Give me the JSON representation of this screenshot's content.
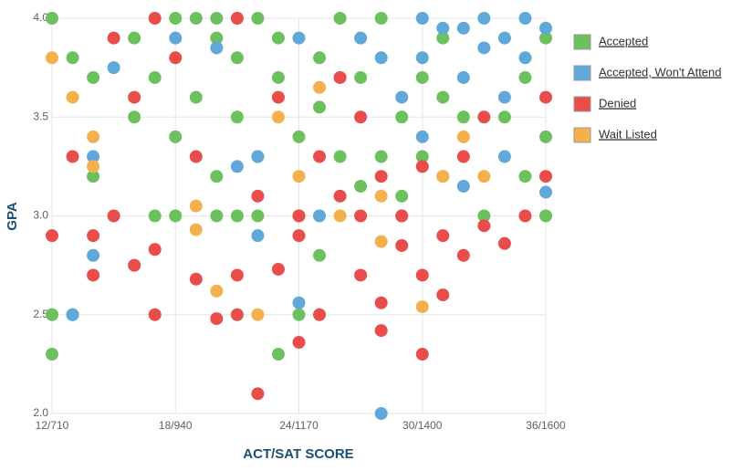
{
  "chart_data": {
    "type": "scatter",
    "x_label": "ACT/SAT SCORE",
    "y_label": "GPA",
    "xlim": [
      12,
      36
    ],
    "xticks": [
      {
        "value": 12,
        "label": "12/710"
      },
      {
        "value": 18,
        "label": "18/940"
      },
      {
        "value": 24,
        "label": "24/1170"
      },
      {
        "value": 30,
        "label": "30/1400"
      },
      {
        "value": 36,
        "label": "36/1600"
      }
    ],
    "ylim": [
      2,
      4
    ],
    "yticks": [
      {
        "value": 2,
        "label": "2.0"
      },
      2.5,
      {
        "value": 3,
        "label": "3.0"
      },
      3.5,
      {
        "value": 4,
        "label": "4.0"
      }
    ],
    "grid": true,
    "legend": "right",
    "series": [
      {
        "name": "Accepted",
        "color": "#6cc05e",
        "x": [
          12,
          12,
          12,
          13,
          13,
          14,
          14,
          16,
          16,
          17,
          17,
          18,
          18,
          18,
          19,
          19,
          20,
          20,
          20,
          21,
          21,
          22,
          22,
          22,
          23,
          23,
          23,
          24,
          24,
          24,
          25,
          25,
          26,
          26,
          27,
          27,
          28,
          28,
          29,
          29,
          30,
          30,
          31,
          32,
          33,
          34,
          35,
          35,
          36,
          36,
          36,
          21,
          25,
          20,
          31
        ],
        "values": [
          4.0,
          2.5,
          2.3,
          3.8,
          2.5,
          3.7,
          3.2,
          3.9,
          3.5,
          3.7,
          3.0,
          4.0,
          3.4,
          3.0,
          4.0,
          3.6,
          4.0,
          3.2,
          3.0,
          3.8,
          3.5,
          4.0,
          3.3,
          3.0,
          3.9,
          3.7,
          2.3,
          3.4,
          3.0,
          2.5,
          2.8,
          3.8,
          3.3,
          4.0,
          3.7,
          3.15,
          3.3,
          4.0,
          3.5,
          3.1,
          3.7,
          3.3,
          3.6,
          3.5,
          3.0,
          3.5,
          3.2,
          3.7,
          3.4,
          3.0,
          3.9,
          3.0,
          3.55,
          3.9,
          3.9
        ]
      },
      {
        "name": "Accepted, Won't Attend",
        "color": "#5fa8d9",
        "x": [
          13,
          14,
          14,
          15,
          18,
          20,
          21,
          22,
          22,
          24,
          24,
          25,
          26,
          27,
          28,
          28,
          29,
          29,
          30,
          30,
          31,
          31,
          32,
          32,
          33,
          33,
          34,
          34,
          35,
          35,
          36,
          36,
          34,
          30,
          32
        ],
        "values": [
          2.5,
          3.3,
          2.8,
          3.75,
          3.9,
          3.85,
          3.25,
          3.3,
          2.9,
          2.56,
          3.9,
          3.0,
          3.7,
          3.9,
          2.0,
          3.8,
          3.6,
          3.0,
          3.8,
          3.4,
          3.95,
          3.2,
          3.7,
          3.15,
          4.0,
          3.85,
          3.6,
          3.9,
          4.0,
          3.8,
          3.95,
          3.12,
          3.3,
          4.0,
          3.95
        ]
      },
      {
        "name": "Denied",
        "color": "#e84d4b",
        "x": [
          12,
          13,
          14,
          14,
          15,
          15,
          16,
          16,
          17,
          17,
          17,
          18,
          19,
          19,
          20,
          21,
          21,
          21,
          22,
          22,
          23,
          23,
          24,
          24,
          24,
          25,
          25,
          26,
          26,
          27,
          27,
          28,
          28,
          28,
          29,
          29,
          30,
          30,
          30,
          31,
          31,
          32,
          32,
          33,
          33,
          34,
          35,
          36,
          36,
          27
        ],
        "values": [
          2.9,
          3.3,
          2.9,
          2.7,
          3.9,
          3.0,
          3.6,
          2.75,
          4.0,
          2.83,
          2.5,
          3.8,
          2.68,
          3.3,
          2.48,
          4.0,
          2.7,
          2.5,
          2.1,
          3.1,
          2.73,
          3.6,
          2.36,
          2.9,
          3.0,
          2.5,
          3.3,
          3.1,
          3.7,
          2.7,
          3.0,
          2.56,
          2.42,
          3.2,
          2.85,
          3.0,
          2.3,
          2.7,
          3.25,
          2.9,
          2.6,
          2.8,
          3.3,
          2.95,
          3.5,
          2.86,
          3.0,
          3.6,
          3.2,
          3.5
        ]
      },
      {
        "name": "Wait Listed",
        "color": "#f5b04e",
        "x": [
          12,
          13,
          14,
          14,
          19,
          19,
          20,
          22,
          23,
          24,
          25,
          26,
          28,
          28,
          30,
          31,
          32,
          33
        ],
        "values": [
          3.8,
          3.6,
          3.4,
          3.25,
          3.05,
          2.93,
          2.62,
          2.5,
          3.5,
          3.2,
          3.65,
          3.0,
          2.87,
          3.1,
          2.54,
          3.2,
          3.4,
          3.2
        ]
      }
    ]
  }
}
